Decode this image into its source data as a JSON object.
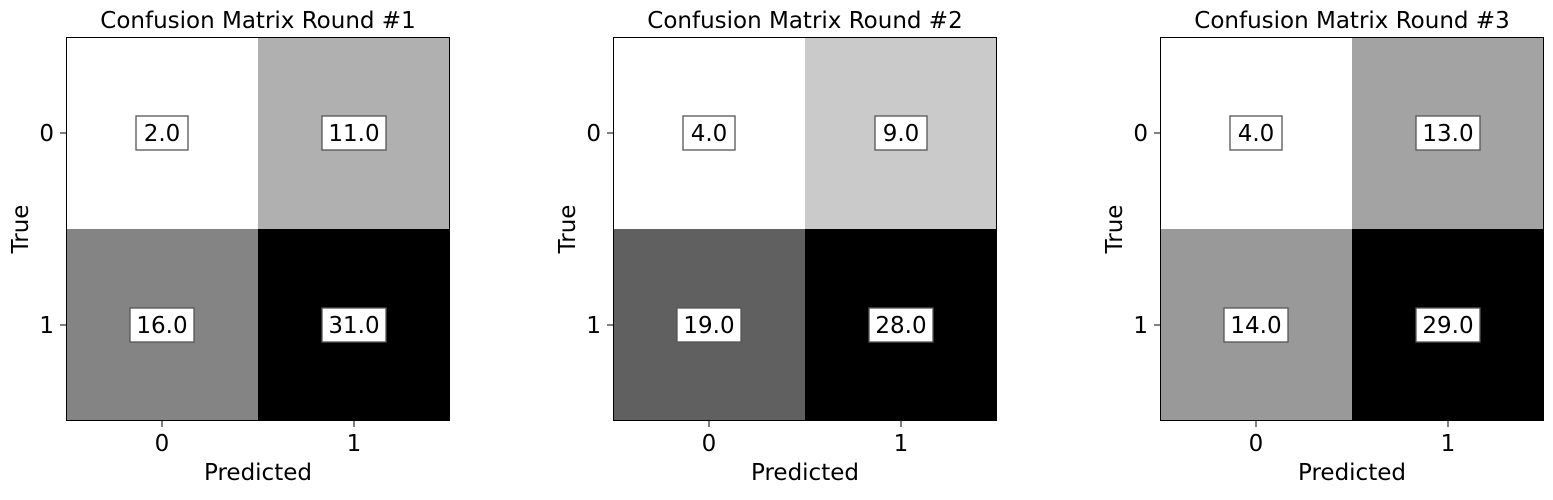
{
  "chart_data": [
    {
      "type": "heatmap",
      "title": "Confusion Matrix Round #1",
      "xlabel": "Predicted",
      "ylabel": "True",
      "x_ticks": [
        "0",
        "1"
      ],
      "y_ticks": [
        "0",
        "1"
      ],
      "values": [
        [
          2.0,
          11.0
        ],
        [
          16.0,
          31.0
        ]
      ],
      "value_labels": [
        [
          "2.0",
          "11.0"
        ],
        [
          "16.0",
          "31.0"
        ]
      ],
      "colormap": "grayscale-reversed",
      "grid": false
    },
    {
      "type": "heatmap",
      "title": "Confusion Matrix Round #2",
      "xlabel": "Predicted",
      "ylabel": "True",
      "x_ticks": [
        "0",
        "1"
      ],
      "y_ticks": [
        "0",
        "1"
      ],
      "values": [
        [
          4.0,
          9.0
        ],
        [
          19.0,
          28.0
        ]
      ],
      "value_labels": [
        [
          "4.0",
          "9.0"
        ],
        [
          "19.0",
          "28.0"
        ]
      ],
      "colormap": "grayscale-reversed",
      "grid": false
    },
    {
      "type": "heatmap",
      "title": "Confusion Matrix Round #3",
      "xlabel": "Predicted",
      "ylabel": "True",
      "x_ticks": [
        "0",
        "1"
      ],
      "y_ticks": [
        "0",
        "1"
      ],
      "values": [
        [
          4.0,
          13.0
        ],
        [
          14.0,
          29.0
        ]
      ],
      "value_labels": [
        [
          "4.0",
          "13.0"
        ],
        [
          "14.0",
          "29.0"
        ]
      ],
      "colormap": "grayscale-reversed",
      "grid": false
    }
  ]
}
